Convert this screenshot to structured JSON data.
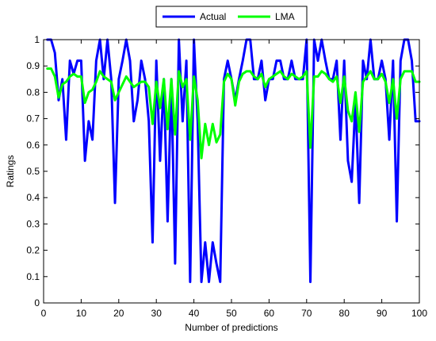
{
  "chart_data": {
    "type": "line",
    "title": "",
    "xlabel": "Number of predictions",
    "ylabel": "Ratings",
    "xlim": [
      0,
      100
    ],
    "ylim": [
      0,
      1
    ],
    "xticks": [
      0,
      10,
      20,
      30,
      40,
      50,
      60,
      70,
      80,
      90,
      100
    ],
    "yticks": [
      0,
      0.1,
      0.2,
      0.3,
      0.4,
      0.5,
      0.6,
      0.7,
      0.8,
      0.9,
      1
    ],
    "xtick_labels": [
      "0",
      "10",
      "20",
      "30",
      "40",
      "50",
      "60",
      "70",
      "80",
      "90",
      "100"
    ],
    "ytick_labels": [
      "0",
      "0.1",
      "0.2",
      "0.3",
      "0.4",
      "0.5",
      "0.6",
      "0.7",
      "0.8",
      "0.9",
      "1"
    ],
    "grid": false,
    "legend_position": "top-center-outside",
    "x": [
      1,
      2,
      3,
      4,
      5,
      6,
      7,
      8,
      9,
      10,
      11,
      12,
      13,
      14,
      15,
      16,
      17,
      18,
      19,
      20,
      21,
      22,
      23,
      24,
      25,
      26,
      27,
      28,
      29,
      30,
      31,
      32,
      33,
      34,
      35,
      36,
      37,
      38,
      39,
      40,
      41,
      42,
      43,
      44,
      45,
      46,
      47,
      48,
      49,
      50,
      51,
      52,
      53,
      54,
      55,
      56,
      57,
      58,
      59,
      60,
      61,
      62,
      63,
      64,
      65,
      66,
      67,
      68,
      69,
      70,
      71,
      72,
      73,
      74,
      75,
      76,
      77,
      78,
      79,
      80,
      81,
      82,
      83,
      84,
      85,
      86,
      87,
      88,
      89,
      90,
      91,
      92,
      93,
      94,
      95,
      96,
      97,
      98,
      99,
      100
    ],
    "series": [
      {
        "name": "Actual",
        "color": "#0000ff",
        "values": [
          1.0,
          1.0,
          0.95,
          0.77,
          0.85,
          0.62,
          0.92,
          0.87,
          0.92,
          0.92,
          0.54,
          0.69,
          0.62,
          0.92,
          1.0,
          0.85,
          1.0,
          0.85,
          0.38,
          0.85,
          0.92,
          1.0,
          0.92,
          0.69,
          0.77,
          0.92,
          0.85,
          0.69,
          0.23,
          0.92,
          0.54,
          0.85,
          0.31,
          0.85,
          0.15,
          1.0,
          0.69,
          0.92,
          0.08,
          1.0,
          0.69,
          0.08,
          0.23,
          0.08,
          0.23,
          0.15,
          0.08,
          0.85,
          0.92,
          0.85,
          0.77,
          0.85,
          0.92,
          1.0,
          1.0,
          0.85,
          0.85,
          0.92,
          0.77,
          0.85,
          0.85,
          0.92,
          0.92,
          0.85,
          0.85,
          0.92,
          0.85,
          0.85,
          0.85,
          1.0,
          0.08,
          1.0,
          0.92,
          1.0,
          0.92,
          0.85,
          0.85,
          0.92,
          0.62,
          0.92,
          0.54,
          0.46,
          0.77,
          0.38,
          0.92,
          0.85,
          1.0,
          0.85,
          0.85,
          0.92,
          0.85,
          0.62,
          0.92,
          0.31,
          0.92,
          1.0,
          1.0,
          0.92,
          0.69,
          0.69
        ]
      },
      {
        "name": "LMA",
        "color": "#00ff00",
        "values": [
          0.89,
          0.89,
          0.86,
          0.78,
          0.83,
          0.84,
          0.86,
          0.87,
          0.86,
          0.86,
          0.76,
          0.8,
          0.81,
          0.84,
          0.88,
          0.86,
          0.85,
          0.84,
          0.77,
          0.8,
          0.83,
          0.86,
          0.84,
          0.82,
          0.83,
          0.84,
          0.84,
          0.82,
          0.68,
          0.84,
          0.74,
          0.85,
          0.66,
          0.85,
          0.64,
          0.88,
          0.82,
          0.85,
          0.62,
          0.86,
          0.77,
          0.55,
          0.68,
          0.6,
          0.68,
          0.61,
          0.64,
          0.84,
          0.87,
          0.85,
          0.75,
          0.84,
          0.87,
          0.88,
          0.88,
          0.86,
          0.85,
          0.87,
          0.82,
          0.85,
          0.86,
          0.87,
          0.88,
          0.86,
          0.85,
          0.87,
          0.86,
          0.85,
          0.86,
          0.88,
          0.59,
          0.86,
          0.86,
          0.88,
          0.87,
          0.85,
          0.84,
          0.86,
          0.76,
          0.86,
          0.73,
          0.69,
          0.8,
          0.65,
          0.84,
          0.86,
          0.88,
          0.85,
          0.85,
          0.87,
          0.84,
          0.76,
          0.85,
          0.7,
          0.85,
          0.88,
          0.88,
          0.88,
          0.84,
          0.84
        ]
      }
    ]
  }
}
